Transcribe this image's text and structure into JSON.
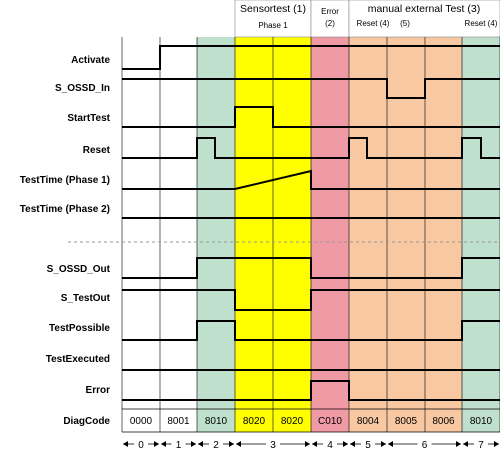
{
  "colors": {
    "green": "#bfe0cc",
    "yellow": "#ffff00",
    "red": "#ef9aa4",
    "orange": "#f8c8a2",
    "white": "#ffffff"
  },
  "headers": {
    "sensortest": "Sensortest (1)",
    "phase1": "Phase 1",
    "error_top": "Error",
    "error_num": "(2)",
    "manual": "manual external Test (3)",
    "reset4_a": "Reset (4)",
    "num5": "(5)",
    "reset4_b": "Reset (4)"
  },
  "signals": [
    {
      "label": "Activate"
    },
    {
      "label": "S_OSSD_In"
    },
    {
      "label": "StartTest"
    },
    {
      "label": "Reset"
    },
    {
      "label": "TestTime (Phase 1)"
    },
    {
      "label": "TestTime (Phase 2)"
    },
    {
      "label": "S_OSSD_Out"
    },
    {
      "label": "S_TestOut"
    },
    {
      "label": "TestPossible"
    },
    {
      "label": "TestExecuted"
    },
    {
      "label": "Error"
    }
  ],
  "diagcode_label": "DiagCode",
  "diagcodes": [
    "0000",
    "8001",
    "8010",
    "8020",
    "8020",
    "C010",
    "8004",
    "8005",
    "8006",
    "8010"
  ],
  "phases": [
    "0",
    "1",
    "2",
    "3",
    "4",
    "5",
    "6",
    "7"
  ]
}
